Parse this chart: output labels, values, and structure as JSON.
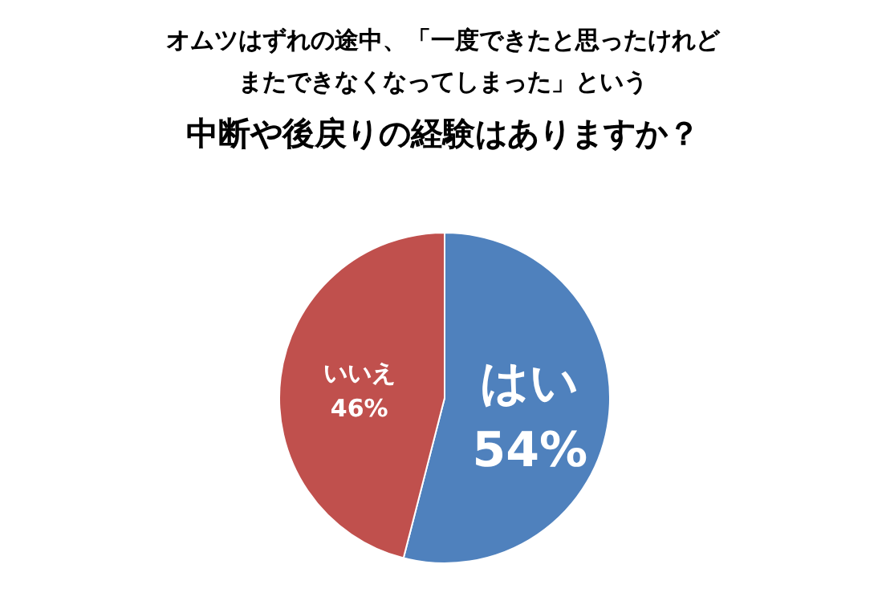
{
  "chart_data": {
    "type": "pie",
    "title": "オムツはずれの途中、「一度できたと思ったけれどまたできなくなってしまった」という",
    "subtitle": "中断や後戻りの経験はありますか？",
    "categories": [
      "はい",
      "いいえ"
    ],
    "values": [
      54,
      46
    ],
    "value_labels": [
      "54%",
      "46%"
    ],
    "colors": [
      "#4f81bd",
      "#c0504d"
    ]
  }
}
